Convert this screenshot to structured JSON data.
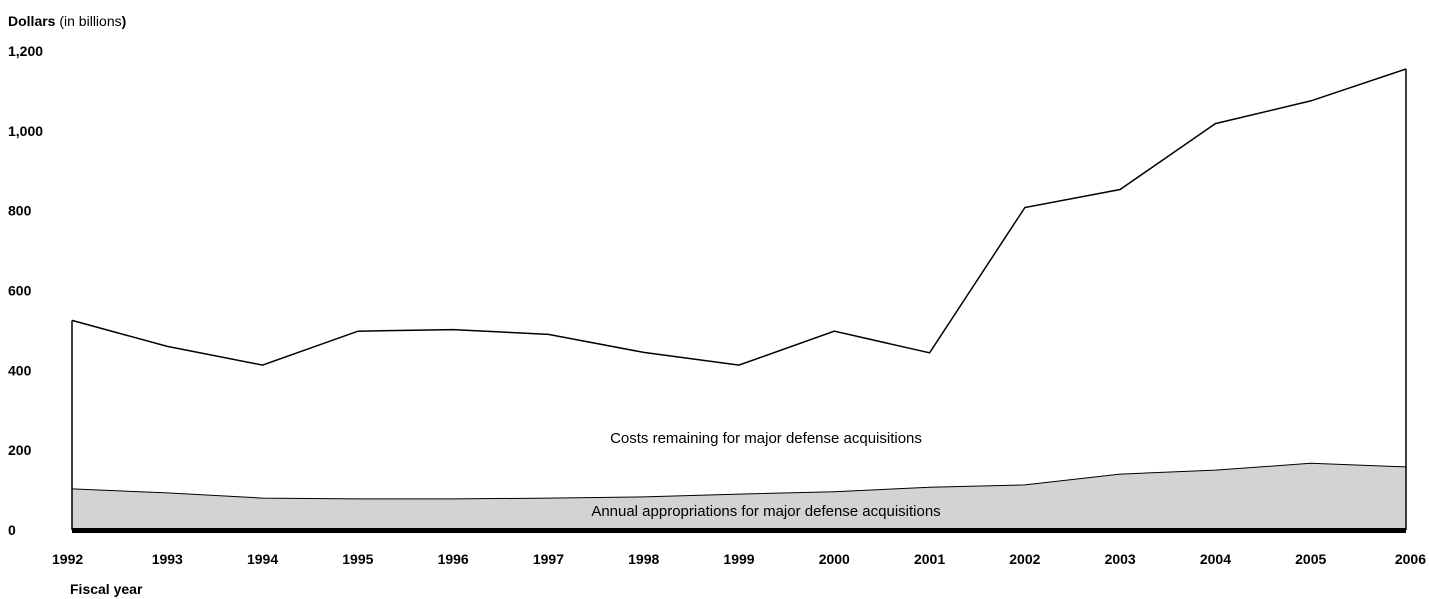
{
  "chart_data": {
    "type": "area",
    "ylabel_bold": "Dollars",
    "ylabel_rest": " (in billions",
    "ylabel_close": ")",
    "xlabel": "Fiscal year",
    "ylim": [
      0,
      1200
    ],
    "y_ticks": [
      "0",
      "200",
      "400",
      "600",
      "800",
      "1,000",
      "1,200"
    ],
    "y_tick_values": [
      0,
      200,
      400,
      600,
      800,
      1000,
      1200
    ],
    "x": [
      "1992",
      "1993",
      "1994",
      "1995",
      "1996",
      "1997",
      "1998",
      "1999",
      "2000",
      "2001",
      "2002",
      "2003",
      "2004",
      "2005",
      "2006"
    ],
    "series": [
      {
        "key": "costs",
        "values": [
          525,
          460,
          413,
          498,
          502,
          490,
          445,
          413,
          498,
          444,
          808,
          853,
          1018,
          1075,
          1155
        ]
      },
      {
        "key": "appropriations",
        "values": [
          103,
          93,
          80,
          78,
          78,
          80,
          83,
          90,
          96,
          107,
          113,
          140,
          150,
          167,
          158
        ]
      }
    ],
    "annotations": {
      "costs": "Costs remaining for major defense acquisitions",
      "appropriations": "Annual appropriations for major defense acquisitions"
    },
    "colors": {
      "appropriations_fill": "#d3d3d3",
      "line": "#000000",
      "baseline": "#000000"
    },
    "grid": false
  }
}
